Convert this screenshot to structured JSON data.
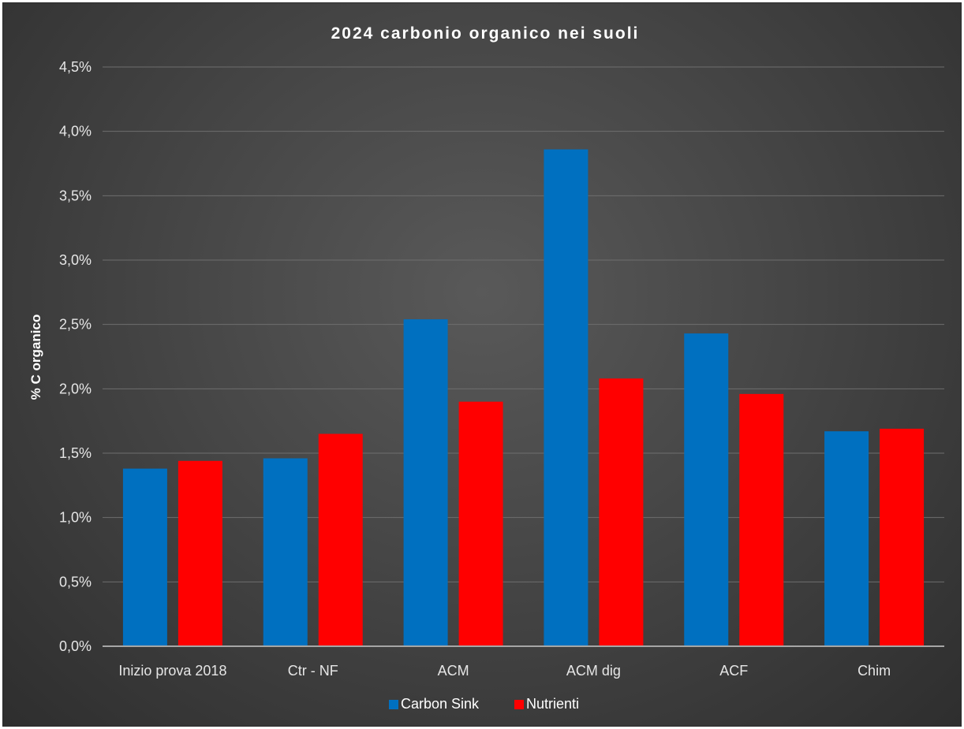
{
  "chart_data": {
    "type": "bar",
    "title": "2024 carbonio organico nei suoli",
    "ylabel": "% C organico",
    "xlabel": "",
    "categories": [
      "Inizio prova 2018",
      "Ctr - NF",
      "ACM",
      "ACM dig",
      "ACF",
      "Chim"
    ],
    "series": [
      {
        "name": "Carbon Sink",
        "color": "#0070c0",
        "values": [
          1.38,
          1.46,
          2.54,
          3.86,
          2.43,
          1.67
        ]
      },
      {
        "name": "Nutrienti",
        "color": "#ff0000",
        "values": [
          1.44,
          1.65,
          1.9,
          2.08,
          1.96,
          1.69
        ]
      }
    ],
    "ylim": [
      0,
      4.5
    ],
    "yticks": [
      "0,0%",
      "0,5%",
      "1,0%",
      "1,5%",
      "2,0%",
      "2,5%",
      "3,0%",
      "3,5%",
      "4,0%",
      "4,5%"
    ],
    "grid": true,
    "legend_position": "bottom"
  }
}
